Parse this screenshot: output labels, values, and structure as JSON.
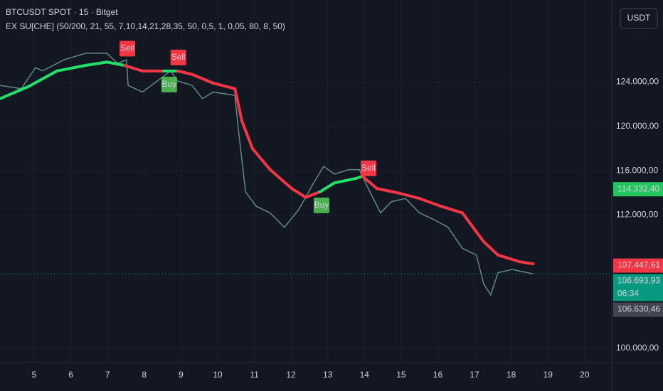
{
  "chart_data": {
    "type": "line",
    "title": "BTCUSDT SPOT · 15 · Bitget",
    "subtitle": "EX SU[CHE] (50/200, 21, 55, 7,10,14,21,28,35, 50, 0,5, 1, 0,05, 80, 8, 50)",
    "currency_button": "USDT",
    "xlim": [
      4.07,
      20.74
    ],
    "xticks": [
      5,
      6,
      7,
      8,
      9,
      10,
      11,
      12,
      13,
      14,
      15,
      16,
      17,
      18,
      19,
      20
    ],
    "ylim": [
      98700,
      131400
    ],
    "yticks": [
      {
        "value": 100000,
        "label": "100.000,00"
      },
      {
        "value": 112000,
        "label": "112.000,00"
      },
      {
        "value": 116000,
        "label": "116.000,00"
      },
      {
        "value": 120000,
        "label": "120.000,00"
      },
      {
        "value": 124000,
        "label": "124.000,00"
      }
    ],
    "grid": true,
    "series": [
      {
        "color": "#5d8a86",
        "x": [
          4.07,
          4.65,
          5.04,
          5.23,
          5.81,
          6.4,
          6.98,
          7.27,
          7.52,
          7.56,
          7.95,
          8.72,
          8.91,
          9.3,
          9.59,
          9.88,
          10.47,
          10.56,
          10.76,
          11.05,
          11.43,
          11.82,
          12.21,
          12.6,
          12.89,
          13.18,
          13.57,
          13.86,
          14.15,
          14.44,
          14.73,
          15.12,
          15.5,
          15.89,
          16.28,
          16.67,
          17.05,
          17.25,
          17.44,
          17.64,
          18.02,
          18.6
        ],
        "values": [
          123700,
          123400,
          125300,
          125000,
          126000,
          126600,
          126600,
          125700,
          126000,
          123700,
          123100,
          125000,
          124100,
          123700,
          122500,
          123100,
          122800,
          119900,
          114100,
          112800,
          112200,
          110900,
          112500,
          114800,
          116400,
          115700,
          116100,
          116100,
          114100,
          112200,
          113200,
          113500,
          112200,
          111600,
          110900,
          109000,
          108400,
          105800,
          104800,
          106800,
          107100,
          106700
        ]
      },
      {
        "width": 4,
        "x": [
          4.07,
          4.85,
          5.62,
          6.4,
          6.98,
          7.46,
          7.95,
          8.53,
          8.91,
          9.3,
          9.88,
          10.47,
          10.66,
          10.95,
          11.43,
          12.02,
          12.4,
          12.79,
          13.18,
          13.76,
          13.95,
          14.34,
          14.92,
          15.5,
          16.08,
          16.67,
          17.25,
          17.64,
          18.22,
          18.6
        ],
        "values": [
          122500,
          123600,
          125000,
          125500,
          125800,
          125500,
          125000,
          125000,
          125000,
          124700,
          123900,
          123400,
          120500,
          118000,
          116100,
          114400,
          113600,
          114100,
          114900,
          115300,
          115500,
          114400,
          114000,
          113500,
          112800,
          112200,
          109600,
          108400,
          107800,
          107600
        ],
        "colors": [
          "#22e06a",
          "#22e06a",
          "#22e06a",
          "#22e06a",
          "#22e06a",
          "#f23645",
          "#f23645",
          "#22e06a",
          "#f23645",
          "#f23645",
          "#f23645",
          "#f23645",
          "#f23645",
          "#f23645",
          "#f23645",
          "#f23645",
          "#f23645",
          "#22e06a",
          "#22e06a",
          "#22e06a",
          "#f23645",
          "#f23645",
          "#f23645",
          "#f23645",
          "#f23645",
          "#f23645",
          "#f23645",
          "#f23645",
          "#f23645",
          "#f23645"
        ]
      }
    ],
    "signals": [
      {
        "text": "Sell",
        "x": 7.54,
        "y": 125800,
        "color": "#f23645",
        "position": "above"
      },
      {
        "text": "Buy",
        "x": 8.68,
        "y": 125000,
        "color": "#4caf50",
        "position": "below"
      },
      {
        "text": "Sell",
        "x": 8.93,
        "y": 125000,
        "color": "#f23645",
        "position": "above"
      },
      {
        "text": "Buy",
        "x": 12.83,
        "y": 114100,
        "color": "#4caf50",
        "position": "below"
      },
      {
        "text": "Sell",
        "x": 14.11,
        "y": 115000,
        "color": "#f23645",
        "position": "above"
      }
    ],
    "last_price": 106693.93,
    "price_tags": [
      {
        "value": 114332.4,
        "label": "114.332,40",
        "color": "#22c55e",
        "text_color": "#131722"
      },
      {
        "value": 107447.61,
        "label": "107.447,61",
        "color": "#f23645",
        "text_color": "#ffffff"
      },
      {
        "value": 106693.93,
        "label": "106.693,93",
        "color": "#089981",
        "text_color": "#ffffff",
        "countdown": "06:34"
      },
      {
        "value": 106630.46,
        "label": "106.630,46",
        "color": "#434651",
        "text_color": "#ffffff"
      }
    ]
  }
}
